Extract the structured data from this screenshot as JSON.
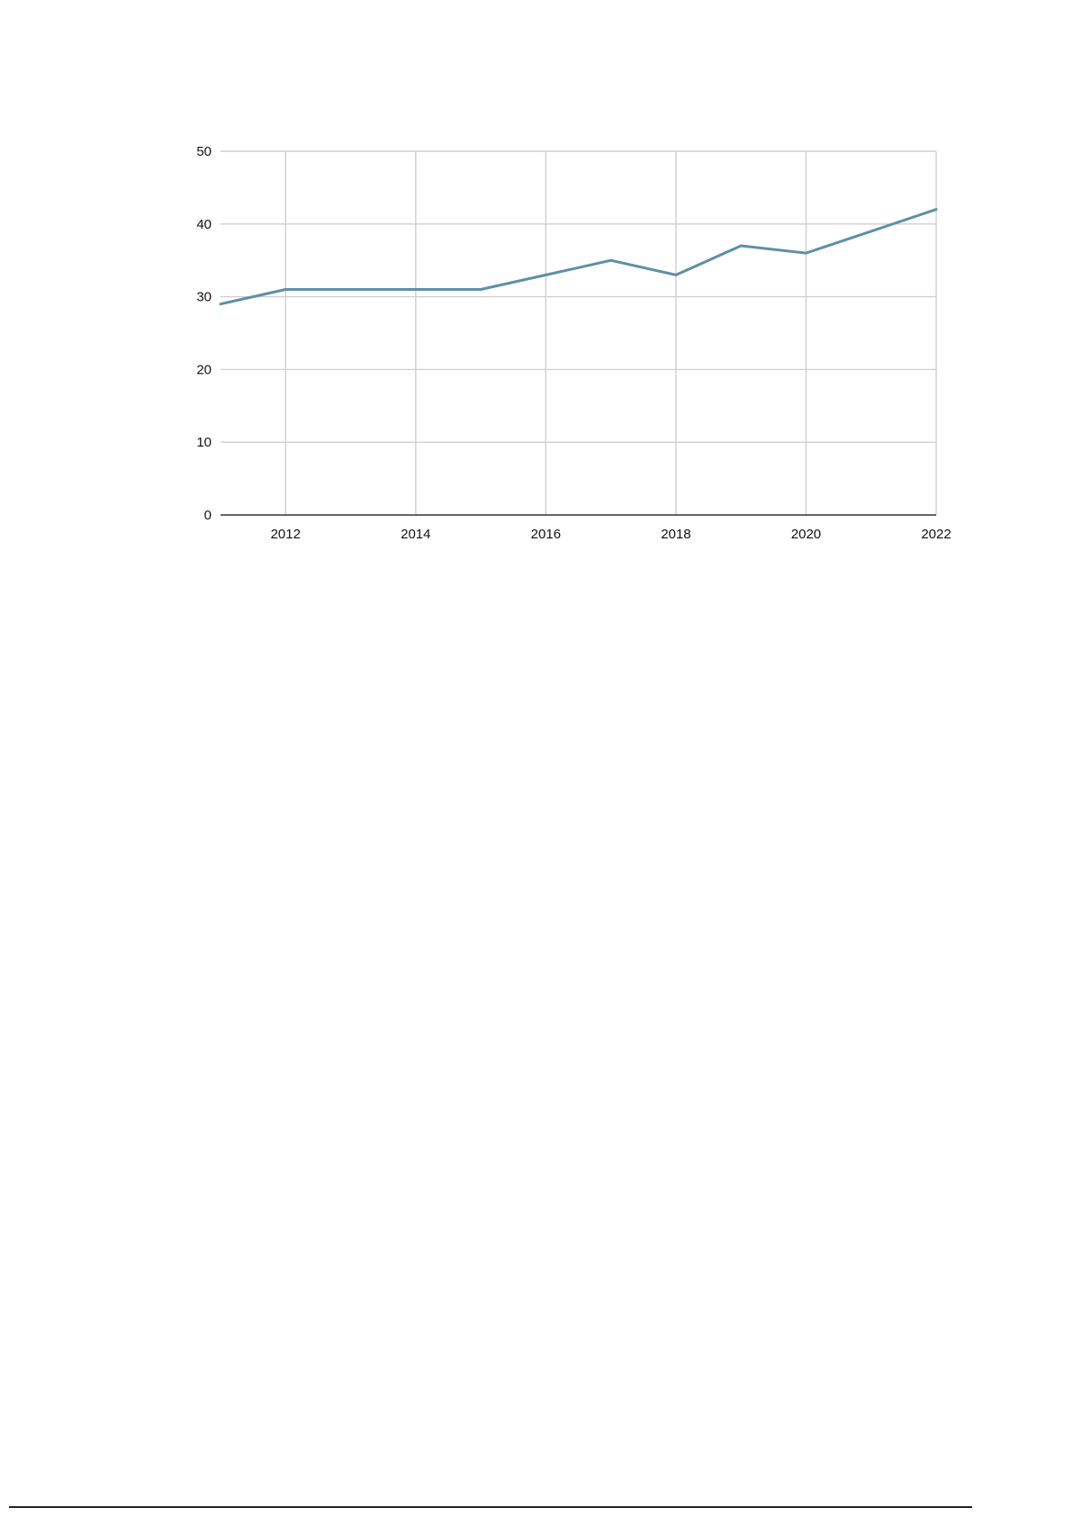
{
  "chart_data": {
    "type": "line",
    "title": "",
    "xlabel": "",
    "ylabel": "",
    "x": [
      2011,
      2012,
      2013,
      2014,
      2015,
      2016,
      2017,
      2018,
      2019,
      2020,
      2021,
      2022
    ],
    "series": [
      {
        "values": [
          29,
          31,
          31,
          31,
          31,
          33,
          35,
          33,
          37,
          36,
          39,
          42
        ],
        "color": "#5f8fa8"
      }
    ],
    "xlim": [
      2011,
      2022
    ],
    "ylim": [
      0,
      50
    ],
    "x_ticks": [
      2012,
      2014,
      2016,
      2018,
      2020,
      2022
    ],
    "y_ticks": [
      0,
      10,
      20,
      30,
      40,
      50
    ],
    "x_tick_labels": [
      "2012",
      "2014",
      "2016",
      "2018",
      "2020",
      "2022"
    ],
    "y_tick_labels": [
      "0",
      "10",
      "20",
      "30",
      "40",
      "50"
    ],
    "grid": true,
    "legend": "none"
  }
}
